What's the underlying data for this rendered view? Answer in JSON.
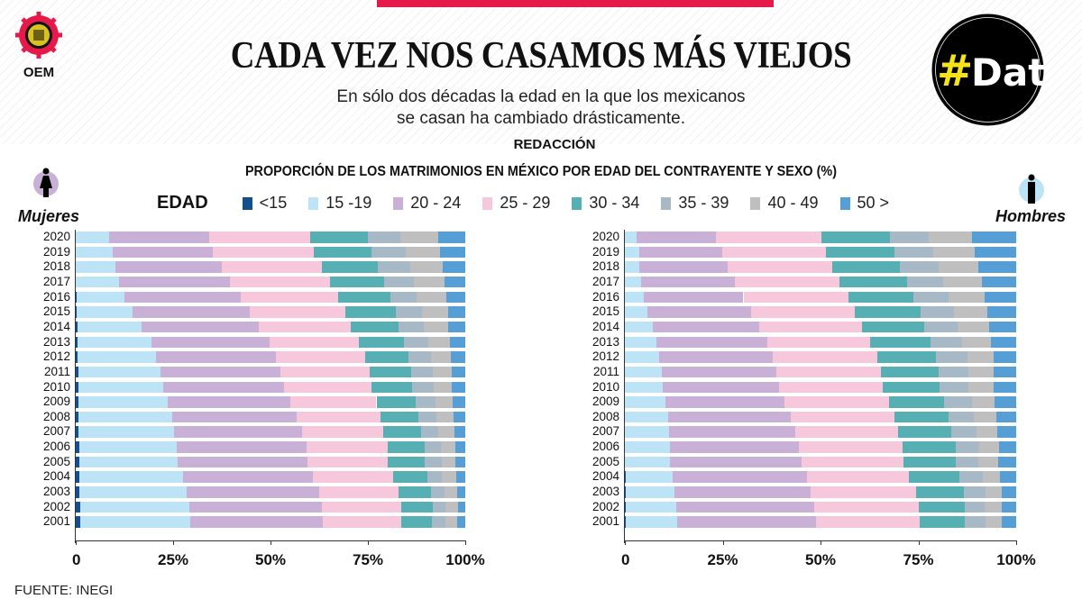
{
  "header": {
    "title": "CADA VEZ NOS CASAMOS MÁS VIEJOS",
    "subtitle_line1": "En sólo dos décadas la edad en la que los mexicanos",
    "subtitle_line2": "se casan ha cambiado drásticamente.",
    "credit": "REDACCIÓN",
    "publisher_logo": "OEM",
    "badge_hash": "#",
    "badge_text": "Data"
  },
  "footer": {
    "source": "FUENTE: INEGI"
  },
  "chart_data": {
    "type": "bar",
    "orientation": "horizontal-stacked-100",
    "title": "PROPORCIÓN DE LOS MATRIMONIOS EN MÉXICO POR EDAD DEL CONTRAYENTE Y SEXO (%)",
    "legend_label": "EDAD",
    "legend_placement": "top",
    "xlim": [
      0,
      100
    ],
    "xticks": [
      "0",
      "25%",
      "50%",
      "75%",
      "100%"
    ],
    "categories": [
      "2020",
      "2019",
      "2018",
      "2017",
      "2016",
      "2015",
      "2014",
      "2013",
      "2012",
      "2011",
      "2010",
      "2009",
      "2008",
      "2007",
      "2006",
      "2005",
      "2004",
      "2003",
      "2002",
      "2001"
    ],
    "age_groups": [
      {
        "name": "<15",
        "color": "#14508f"
      },
      {
        "name": "15 -19",
        "color": "#bde3f7"
      },
      {
        "name": "20 - 24",
        "color": "#c9b0d6"
      },
      {
        "name": "25 - 29",
        "color": "#f7c8dc"
      },
      {
        "name": "30 - 34",
        "color": "#56b0b3"
      },
      {
        "name": "35 - 39",
        "color": "#a7b9c6"
      },
      {
        "name": "40 - 49",
        "color": "#bfbfbf"
      },
      {
        "name": "50 >",
        "color": "#559ed6"
      }
    ],
    "panels": [
      {
        "name": "Mujeres",
        "values": [
          [
            0.1,
            8.5,
            25.6,
            26.1,
            14.8,
            8.3,
            9.7,
            6.9
          ],
          [
            0.1,
            9.4,
            25.7,
            26.0,
            14.8,
            8.8,
            8.7,
            6.5
          ],
          [
            0.1,
            10.2,
            27.1,
            25.8,
            14.4,
            8.2,
            8.4,
            5.8
          ],
          [
            0.1,
            11.0,
            28.4,
            25.7,
            14.0,
            7.5,
            8.0,
            5.3
          ],
          [
            0.2,
            12.4,
            29.7,
            25.0,
            13.5,
            6.8,
            7.6,
            4.8
          ],
          [
            0.3,
            14.3,
            30.0,
            24.6,
            12.9,
            6.7,
            6.7,
            4.5
          ],
          [
            0.4,
            16.5,
            30.2,
            23.6,
            12.2,
            6.5,
            6.2,
            4.4
          ],
          [
            0.5,
            18.9,
            30.3,
            23.1,
            11.5,
            6.1,
            5.7,
            3.9
          ],
          [
            0.5,
            20.1,
            30.7,
            23.1,
            11.1,
            5.7,
            5.2,
            3.6
          ],
          [
            0.6,
            21.2,
            30.8,
            22.9,
            10.7,
            5.5,
            4.8,
            3.5
          ],
          [
            0.6,
            21.9,
            31.0,
            22.5,
            10.3,
            5.5,
            4.7,
            3.5
          ],
          [
            0.7,
            22.9,
            31.6,
            22.0,
            10.0,
            5.1,
            4.5,
            3.2
          ],
          [
            0.8,
            24.0,
            32.0,
            21.5,
            9.7,
            4.6,
            4.4,
            3.0
          ],
          [
            0.8,
            24.5,
            32.7,
            21.0,
            9.6,
            4.5,
            4.1,
            2.8
          ],
          [
            0.9,
            25.1,
            33.2,
            21.0,
            9.3,
            4.3,
            3.7,
            2.5
          ],
          [
            0.9,
            25.3,
            33.4,
            20.6,
            9.3,
            4.5,
            3.5,
            2.5
          ],
          [
            1.0,
            26.5,
            33.3,
            20.7,
            8.7,
            3.8,
            3.7,
            2.3
          ],
          [
            1.0,
            27.5,
            33.9,
            20.5,
            8.3,
            3.4,
            3.3,
            2.1
          ],
          [
            1.1,
            28.0,
            34.0,
            20.5,
            8.1,
            3.2,
            3.2,
            1.9
          ],
          [
            1.2,
            28.3,
            34.0,
            20.1,
            7.9,
            3.4,
            3.0,
            2.1
          ]
        ]
      },
      {
        "name": "Hombres",
        "values": [
          [
            0,
            3.1,
            20.2,
            26.9,
            17.6,
            9.9,
            11.1,
            11.2
          ],
          [
            0,
            3.7,
            21.1,
            26.6,
            17.4,
            10.0,
            10.7,
            10.5
          ],
          [
            0,
            3.7,
            22.5,
            26.9,
            17.2,
            9.9,
            10.2,
            9.6
          ],
          [
            0,
            4.2,
            23.8,
            26.8,
            17.4,
            9.2,
            9.8,
            8.8
          ],
          [
            0,
            4.8,
            25.5,
            26.9,
            16.6,
            9.0,
            9.1,
            8.1
          ],
          [
            0,
            5.8,
            26.4,
            26.6,
            16.7,
            8.7,
            8.5,
            7.3
          ],
          [
            0,
            7.1,
            27.3,
            26.2,
            16.0,
            8.5,
            7.9,
            7.0
          ],
          [
            0,
            8.1,
            28.3,
            26.3,
            15.5,
            8.0,
            7.4,
            6.4
          ],
          [
            0,
            8.8,
            28.9,
            26.8,
            15.0,
            8.0,
            6.7,
            5.8
          ],
          [
            0,
            9.4,
            29.4,
            26.7,
            14.7,
            7.7,
            6.4,
            5.7
          ],
          [
            0,
            9.6,
            29.8,
            26.6,
            14.5,
            7.3,
            6.5,
            5.7
          ],
          [
            0,
            10.3,
            30.5,
            26.7,
            14.1,
            7.2,
            5.7,
            5.5
          ],
          [
            0,
            11.0,
            31.5,
            26.5,
            13.8,
            6.4,
            5.8,
            5.0
          ],
          [
            0,
            11.2,
            32.3,
            26.3,
            13.7,
            6.3,
            5.4,
            4.8
          ],
          [
            0,
            11.5,
            33.0,
            26.5,
            13.6,
            5.9,
            5.2,
            4.3
          ],
          [
            0,
            11.5,
            33.7,
            26.1,
            13.3,
            5.8,
            5.1,
            4.5
          ],
          [
            0.2,
            12.0,
            34.3,
            26.1,
            12.9,
            5.9,
            4.4,
            4.2
          ],
          [
            0.2,
            12.4,
            34.9,
            27.0,
            12.2,
            5.5,
            4.0,
            3.8
          ],
          [
            0.2,
            12.9,
            35.3,
            26.7,
            11.8,
            5.1,
            4.4,
            3.6
          ],
          [
            0.2,
            13.1,
            35.5,
            26.6,
            11.5,
            5.2,
            4.3,
            3.6
          ]
        ]
      }
    ]
  }
}
